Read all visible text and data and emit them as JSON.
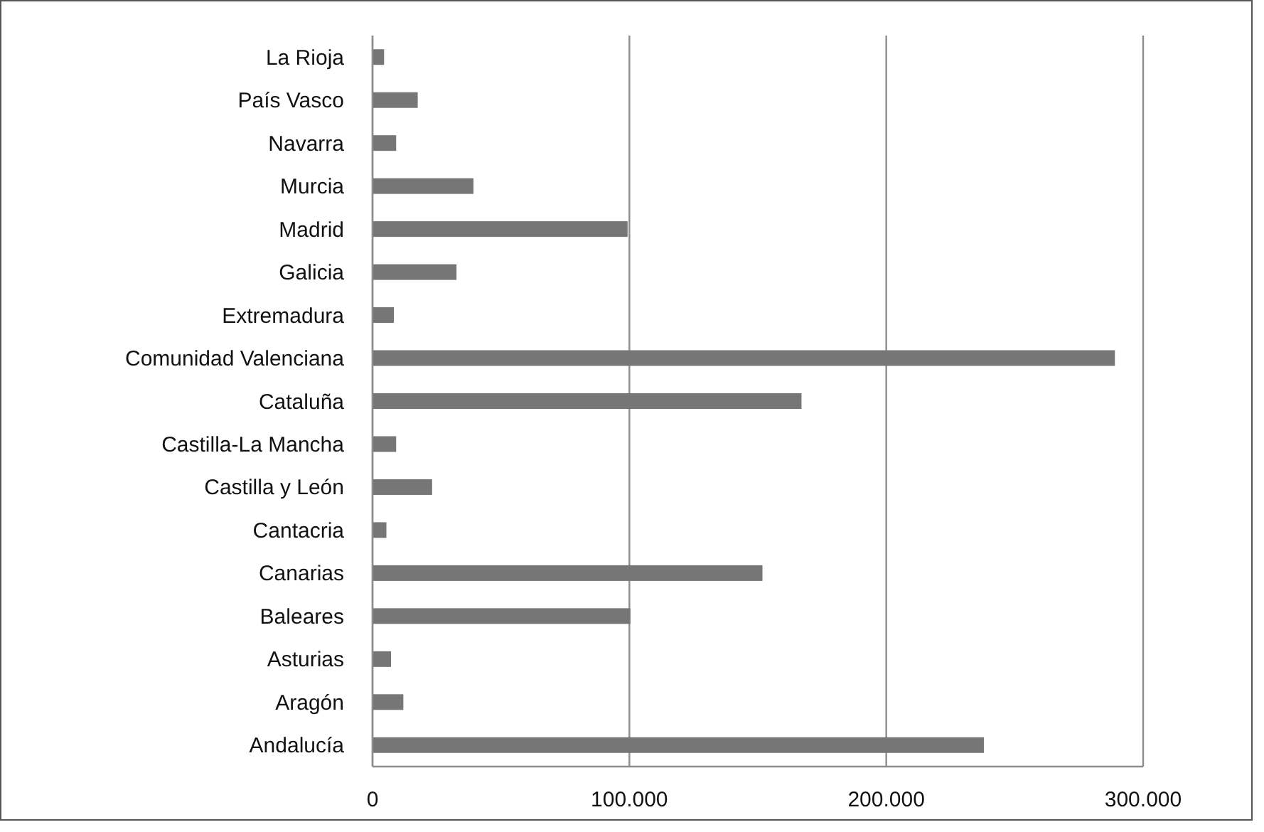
{
  "chart_data": {
    "type": "bar",
    "orientation": "horizontal",
    "categories": [
      "La Rioja",
      "País Vasco",
      "Navarra",
      "Murcia",
      "Madrid",
      "Galicia",
      "Extremadura",
      "Comunidad Valenciana",
      "Cataluña",
      "Castilla-La Mancha",
      "Castilla y León",
      "Cantacria",
      "Canarias",
      "Baleares",
      "Asturias",
      "Aragón",
      "Andalucía"
    ],
    "values": [
      4500,
      17600,
      9200,
      39300,
      99300,
      32700,
      8300,
      289000,
      167000,
      9200,
      23200,
      5400,
      151800,
      100400,
      7200,
      12000,
      238000
    ],
    "color": "#767676",
    "xlim": [
      0,
      300000
    ],
    "xticks": [
      {
        "value": 0,
        "label": "0"
      },
      {
        "value": 100000,
        "label": "100.000"
      },
      {
        "value": 200000,
        "label": "200.000"
      },
      {
        "value": 300000,
        "label": "300.000"
      }
    ],
    "grid": "x"
  }
}
